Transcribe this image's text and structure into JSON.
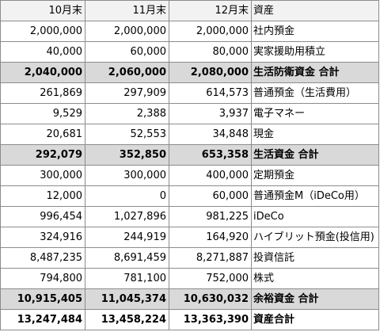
{
  "header": {
    "col1": "10月末",
    "col2": "11月末",
    "col3": "12月末",
    "label": "資産"
  },
  "rows": [
    {
      "type": "item",
      "v1": "2,000,000",
      "v2": "2,000,000",
      "v3": "2,000,000",
      "label": "社内預金"
    },
    {
      "type": "item",
      "v1": "40,000",
      "v2": "60,000",
      "v3": "80,000",
      "label": "実家援助用積立"
    },
    {
      "type": "subtotal",
      "v1": "2,040,000",
      "v2": "2,060,000",
      "v3": "2,080,000",
      "label": "生活防衛資金 合計"
    },
    {
      "type": "item",
      "v1": "261,869",
      "v2": "297,909",
      "v3": "614,573",
      "label": "普通預金（生活費用）"
    },
    {
      "type": "item",
      "v1": "9,529",
      "v2": "2,388",
      "v3": "3,937",
      "label": "電子マネー"
    },
    {
      "type": "item",
      "v1": "20,681",
      "v2": "52,553",
      "v3": "34,848",
      "label": "現金"
    },
    {
      "type": "subtotal",
      "v1": "292,079",
      "v2": "352,850",
      "v3": "653,358",
      "label": "生活資金 合計"
    },
    {
      "type": "item",
      "v1": "300,000",
      "v2": "300,000",
      "v3": "400,000",
      "label": "定期預金"
    },
    {
      "type": "item",
      "v1": "12,000",
      "v2": "0",
      "v3": "60,000",
      "label": "普通預金M（iDeCo用）"
    },
    {
      "type": "item",
      "v1": "996,454",
      "v2": "1,027,896",
      "v3": "981,225",
      "label": "iDeCo"
    },
    {
      "type": "item",
      "v1": "324,916",
      "v2": "244,919",
      "v3": "164,920",
      "label": "ハイブリット預金(投信用)"
    },
    {
      "type": "item",
      "v1": "8,487,235",
      "v2": "8,691,459",
      "v3": "8,271,887",
      "label": "投資信託"
    },
    {
      "type": "item",
      "v1": "794,800",
      "v2": "781,100",
      "v3": "752,000",
      "label": "株式"
    },
    {
      "type": "subtotal",
      "v1": "10,915,405",
      "v2": "11,045,374",
      "v3": "10,630,032",
      "label": "余裕資金 合計"
    },
    {
      "type": "total",
      "v1": "13,247,484",
      "v2": "13,458,224",
      "v3": "13,363,390",
      "label": "資産合計"
    }
  ]
}
